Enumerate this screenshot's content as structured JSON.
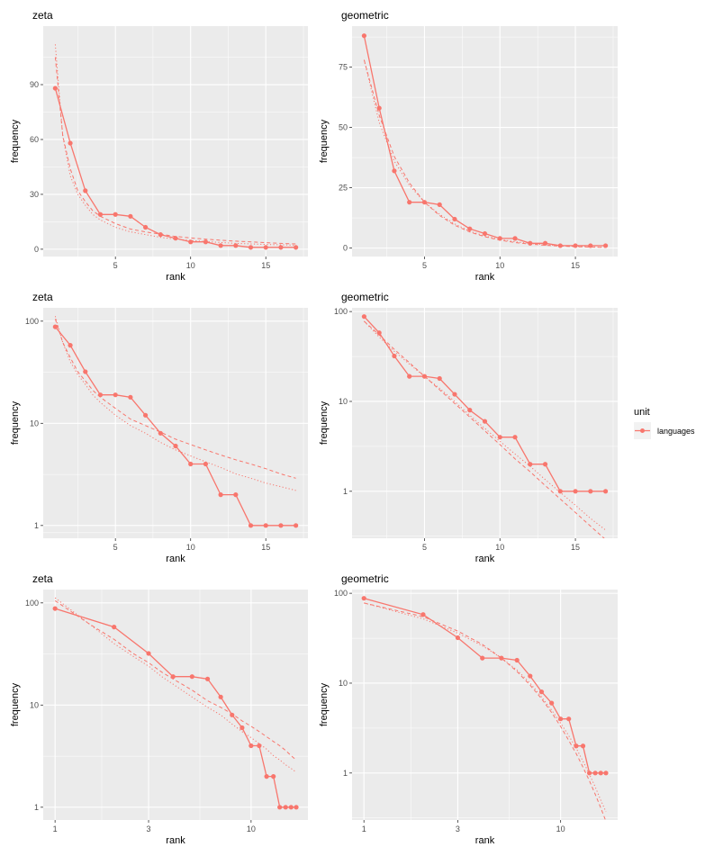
{
  "chart_data": [
    {
      "type": "line",
      "title": "zeta",
      "xlabel": "rank",
      "ylabel": "frequency",
      "xscale": "linear",
      "yscale": "linear",
      "xlim": [
        0.2,
        17.8
      ],
      "ylim": [
        -4,
        122
      ],
      "xticks": [
        5,
        10,
        15
      ],
      "xtick_labels": [
        "5",
        "10",
        "15"
      ],
      "xminor": [
        2.5,
        7.5,
        12.5,
        17.5
      ],
      "yticks": [
        0,
        30,
        60,
        90
      ],
      "ytick_labels": [
        "0",
        "30",
        "60",
        "90"
      ],
      "yminor": [
        15,
        45,
        75,
        105
      ],
      "fit": "zeta"
    },
    {
      "type": "line",
      "title": "geometric",
      "xlabel": "rank",
      "ylabel": "frequency",
      "xscale": "linear",
      "yscale": "linear",
      "xlim": [
        0.2,
        17.8
      ],
      "ylim": [
        -3.5,
        92
      ],
      "xticks": [
        5,
        10,
        15
      ],
      "xtick_labels": [
        "5",
        "10",
        "15"
      ],
      "xminor": [
        2.5,
        7.5,
        12.5,
        17.5
      ],
      "yticks": [
        0,
        25,
        50,
        75
      ],
      "ytick_labels": [
        "0",
        "25",
        "50",
        "75"
      ],
      "yminor": [
        12.5,
        37.5,
        62.5,
        87.5
      ],
      "fit": "geometric"
    },
    {
      "type": "line",
      "title": "zeta",
      "xlabel": "rank",
      "ylabel": "frequency",
      "xscale": "linear",
      "yscale": "log",
      "xlim": [
        0.2,
        17.8
      ],
      "ylim": [
        0.75,
        135
      ],
      "xticks": [
        5,
        10,
        15
      ],
      "xtick_labels": [
        "5",
        "10",
        "15"
      ],
      "xminor": [
        2.5,
        7.5,
        12.5,
        17.5
      ],
      "yticks": [
        1,
        10,
        100
      ],
      "ytick_labels": [
        "1",
        "10",
        "100"
      ],
      "yminor": [
        0.85,
        3.16,
        31.6
      ],
      "fit": "zeta"
    },
    {
      "type": "line",
      "title": "geometric",
      "xlabel": "rank",
      "ylabel": "frequency",
      "xscale": "linear",
      "yscale": "log",
      "xlim": [
        0.2,
        17.8
      ],
      "ylim": [
        0.3,
        110
      ],
      "xticks": [
        5,
        10,
        15
      ],
      "xtick_labels": [
        "5",
        "10",
        "15"
      ],
      "xminor": [
        2.5,
        7.5,
        12.5,
        17.5
      ],
      "yticks": [
        1,
        10,
        100
      ],
      "ytick_labels": [
        "1",
        "10",
        "100"
      ],
      "yminor": [
        0.316,
        3.16,
        31.6
      ],
      "fit": "geometric"
    },
    {
      "type": "line",
      "title": "zeta",
      "xlabel": "rank",
      "ylabel": "frequency",
      "xscale": "log",
      "yscale": "log",
      "xlim": [
        0.87,
        19.5
      ],
      "ylim": [
        0.75,
        135
      ],
      "xticks": [
        1,
        3,
        10
      ],
      "xtick_labels": [
        "1",
        "3",
        "10"
      ],
      "xminor": [
        1.73,
        5.48
      ],
      "yticks": [
        1,
        10,
        100
      ],
      "ytick_labels": [
        "1",
        "10",
        "100"
      ],
      "yminor": [
        3.16,
        31.6
      ],
      "fit": "zeta"
    },
    {
      "type": "line",
      "title": "geometric",
      "xlabel": "rank",
      "ylabel": "frequency",
      "xscale": "log",
      "yscale": "log",
      "xlim": [
        0.87,
        19.5
      ],
      "ylim": [
        0.3,
        110
      ],
      "xticks": [
        1,
        3,
        10
      ],
      "xtick_labels": [
        "1",
        "3",
        "10"
      ],
      "xminor": [
        1.73,
        5.48
      ],
      "yticks": [
        1,
        10,
        100
      ],
      "ytick_labels": [
        "1",
        "10",
        "100"
      ],
      "yminor": [
        0.316,
        3.16,
        31.6
      ],
      "fit": "geometric"
    }
  ],
  "series": {
    "observed": {
      "name": "languages",
      "x": [
        1,
        2,
        3,
        4,
        5,
        6,
        7,
        8,
        9,
        10,
        11,
        12,
        13,
        14,
        15,
        16,
        17
      ],
      "y": [
        88,
        58,
        32,
        19,
        19,
        18,
        12,
        8,
        6,
        4,
        4,
        2,
        2,
        1,
        1,
        1,
        1
      ]
    },
    "zeta_dashed": {
      "x": [
        1,
        1.5,
        2,
        2.5,
        3,
        3.5,
        4,
        5,
        6,
        7,
        8,
        9,
        10,
        11,
        12,
        13,
        14,
        15,
        16,
        17
      ],
      "y": [
        105,
        62,
        44,
        32,
        26,
        21,
        18,
        14,
        11,
        9.5,
        8.2,
        7,
        6.2,
        5.5,
        4.9,
        4.4,
        4,
        3.6,
        3.2,
        2.9
      ]
    },
    "zeta_dotted": {
      "x": [
        1,
        1.5,
        2,
        2.5,
        3,
        3.5,
        4,
        5,
        6,
        7,
        8,
        9,
        10,
        11,
        12,
        13,
        14,
        15,
        16,
        17
      ],
      "y": [
        112,
        62,
        40,
        30,
        24,
        19,
        16,
        12,
        9.5,
        8,
        6.5,
        5.5,
        4.8,
        4.2,
        3.7,
        3.2,
        2.9,
        2.6,
        2.4,
        2.2
      ]
    },
    "geometric_dashed": {
      "x": [
        1,
        2,
        3,
        4,
        5,
        6,
        7,
        8,
        9,
        10,
        11,
        12,
        13,
        14,
        15,
        16,
        17
      ],
      "y": [
        78,
        55,
        38,
        27,
        19,
        13.5,
        9.5,
        6.7,
        4.7,
        3.3,
        2.3,
        1.65,
        1.16,
        0.82,
        0.58,
        0.41,
        0.29
      ]
    },
    "geometric_dotted": {
      "x": [
        1,
        2,
        3,
        4,
        5,
        6,
        7,
        8,
        9,
        10,
        11,
        12,
        13,
        14,
        15,
        16,
        17
      ],
      "y": [
        78,
        52,
        36,
        26,
        19,
        14,
        10,
        7,
        5,
        3.6,
        2.6,
        1.9,
        1.35,
        0.97,
        0.7,
        0.5,
        0.37
      ]
    }
  },
  "legend": {
    "title": "unit",
    "label": "languages",
    "color": "#F8766D",
    "position": "right"
  },
  "colors": {
    "panel": "#EBEBEB",
    "grid": "#FFFFFF",
    "series": "#F8766D"
  }
}
